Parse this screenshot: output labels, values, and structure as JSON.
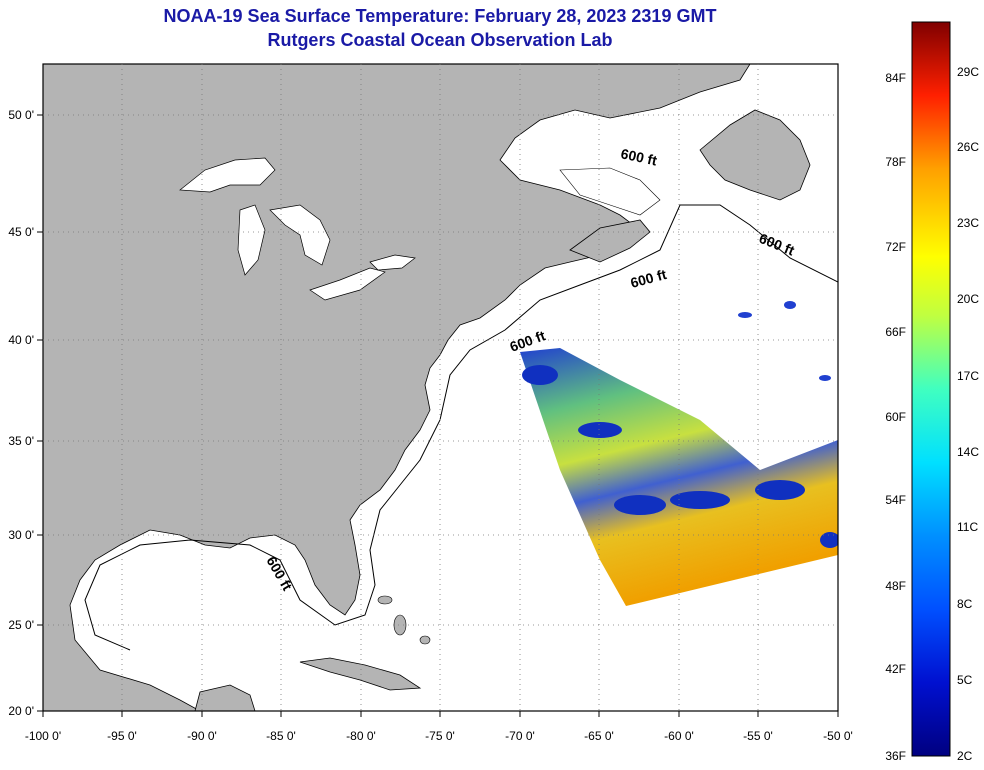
{
  "header": {
    "title": "NOAA-19 Sea Surface Temperature:  February 28, 2023 2319 GMT",
    "subtitle": "Rutgers Coastal Ocean Observation Lab"
  },
  "map": {
    "x_ticks": [
      "-100 0'",
      "-95 0'",
      "-90 0'",
      "-85 0'",
      "-80 0'",
      "-75 0'",
      "-70 0'",
      "-65 0'",
      "-60 0'",
      "-55 0'",
      "-50 0'"
    ],
    "y_ticks": [
      "50 0'",
      "45 0'",
      "40 0'",
      "35 0'",
      "30 0'",
      "25 0'",
      "20 0'"
    ],
    "contour_labels": [
      "600 ft",
      "600 ft",
      "600 ft",
      "600 ft",
      "600 ft"
    ],
    "colors": {
      "land": "#b4b4b4",
      "water": "#ffffff",
      "grid": "#000000"
    }
  },
  "colorbar": {
    "fahrenheit": [
      "84F",
      "78F",
      "72F",
      "66F",
      "60F",
      "54F",
      "48F",
      "42F",
      "36F"
    ],
    "celsius": [
      "29C",
      "26C",
      "23C",
      "20C",
      "17C",
      "14C",
      "11C",
      "8C",
      "5C",
      "2C"
    ]
  }
}
